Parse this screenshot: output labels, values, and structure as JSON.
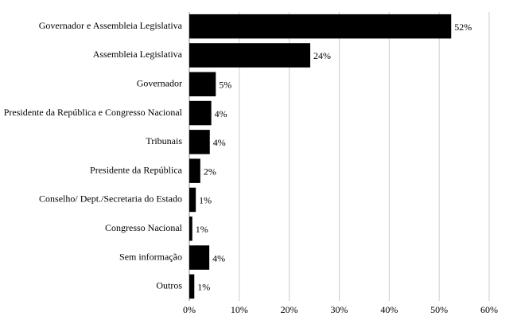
{
  "chart_data": {
    "type": "bar",
    "orientation": "horizontal",
    "categories": [
      "Governador e Assembleia Legislativa",
      "Assembleia Legislativa",
      "Governador",
      "Presidente da República e Congresso Nacional",
      "Tribunais",
      "Presidente da República",
      "Conselho/ Dept./Secretaria do Estado",
      "Congresso Nacional",
      "Sem informação",
      "Outros"
    ],
    "values": [
      52.4,
      24.2,
      5.3,
      4.4,
      4.1,
      2.2,
      1.3,
      0.6,
      4.0,
      1.0
    ],
    "value_labels": [
      "52%",
      "24%",
      "5%",
      "4%",
      "4%",
      "2%",
      "1%",
      "1%",
      "4%",
      "1%"
    ],
    "color": "#000000",
    "xlim": [
      0,
      60
    ],
    "xticks": [
      {
        "value": 0,
        "label": "0%"
      },
      {
        "value": 10,
        "label": "10%"
      },
      {
        "value": 20,
        "label": "20%"
      },
      {
        "value": 30,
        "label": "30%"
      },
      {
        "value": 40,
        "label": "40%"
      },
      {
        "value": 50,
        "label": "50%"
      },
      {
        "value": 60,
        "label": "60%"
      }
    ],
    "grid": true
  }
}
